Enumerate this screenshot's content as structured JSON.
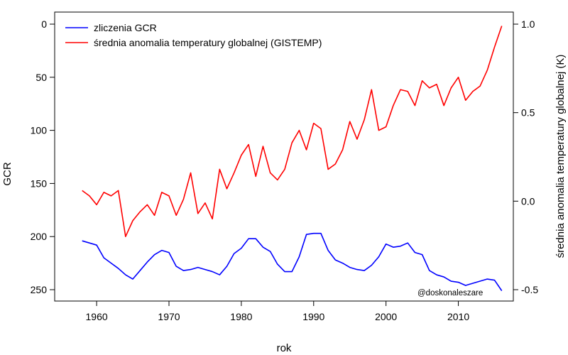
{
  "chart_data": {
    "type": "line",
    "xlabel": "rok",
    "ylabel_left": "GCR",
    "ylabel_right": "średnia anomalia temperatury globalnej (K)",
    "credit": "@doskonaleszare",
    "x_ticks": [
      1960,
      1970,
      1980,
      1990,
      2000,
      2010
    ],
    "left_ticks": [
      0,
      50,
      100,
      150,
      200,
      250
    ],
    "right_ticks": [
      "1.0",
      "0.5",
      "0.0",
      "-0.5"
    ],
    "xlim": [
      1954.2,
      2017.6
    ],
    "left_ylim": [
      0,
      250
    ],
    "left_inverted": true,
    "right_ylim": [
      -0.5,
      1.0
    ],
    "legend_position": "top-left",
    "series": [
      {
        "name": "zliczenia GCR",
        "color": "#0000ff",
        "axis": "left",
        "x": [
          1958,
          1959,
          1960,
          1961,
          1962,
          1963,
          1964,
          1965,
          1966,
          1967,
          1968,
          1969,
          1970,
          1971,
          1972,
          1973,
          1974,
          1975,
          1976,
          1977,
          1978,
          1979,
          1980,
          1981,
          1982,
          1983,
          1984,
          1985,
          1986,
          1987,
          1988,
          1989,
          1990,
          1991,
          1992,
          1993,
          1994,
          1995,
          1996,
          1997,
          1998,
          1999,
          2000,
          2001,
          2002,
          2003,
          2004,
          2005,
          2006,
          2007,
          2008,
          2009,
          2010,
          2011,
          2012,
          2013,
          2014,
          2015,
          2016
        ],
        "values": [
          204,
          206,
          208,
          220,
          225,
          230,
          236,
          240,
          232,
          224,
          217,
          213,
          215,
          228,
          232,
          231,
          229,
          231,
          233,
          236,
          228,
          216,
          211,
          202,
          202,
          210,
          214,
          226,
          233,
          233,
          219,
          198,
          197,
          197,
          213,
          222,
          225,
          229,
          231,
          232,
          227,
          219,
          207,
          210,
          209,
          206,
          215,
          217,
          232,
          236,
          238,
          242,
          243,
          246,
          244,
          242,
          240,
          241,
          251
        ]
      },
      {
        "name": "średnia anomalia temperatury globalnej (GISTEMP)",
        "color": "#ff0000",
        "axis": "right",
        "x": [
          1958,
          1959,
          1960,
          1961,
          1962,
          1963,
          1964,
          1965,
          1966,
          1967,
          1968,
          1969,
          1970,
          1971,
          1972,
          1973,
          1974,
          1975,
          1976,
          1977,
          1978,
          1979,
          1980,
          1981,
          1982,
          1983,
          1984,
          1985,
          1986,
          1987,
          1988,
          1989,
          1990,
          1991,
          1992,
          1993,
          1994,
          1995,
          1996,
          1997,
          1998,
          1999,
          2000,
          2001,
          2002,
          2003,
          2004,
          2005,
          2006,
          2007,
          2008,
          2009,
          2010,
          2011,
          2012,
          2013,
          2014,
          2015,
          2016
        ],
        "values": [
          0.06,
          0.03,
          -0.02,
          0.05,
          0.03,
          0.06,
          -0.2,
          -0.11,
          -0.06,
          -0.02,
          -0.08,
          0.05,
          0.03,
          -0.08,
          0.01,
          0.16,
          -0.07,
          -0.01,
          -0.1,
          0.18,
          0.07,
          0.16,
          0.26,
          0.32,
          0.14,
          0.31,
          0.16,
          0.12,
          0.18,
          0.33,
          0.4,
          0.29,
          0.44,
          0.41,
          0.18,
          0.21,
          0.29,
          0.45,
          0.35,
          0.46,
          0.63,
          0.4,
          0.42,
          0.54,
          0.63,
          0.62,
          0.54,
          0.68,
          0.64,
          0.66,
          0.54,
          0.64,
          0.7,
          0.57,
          0.62,
          0.65,
          0.74,
          0.87,
          0.99
        ]
      }
    ]
  }
}
